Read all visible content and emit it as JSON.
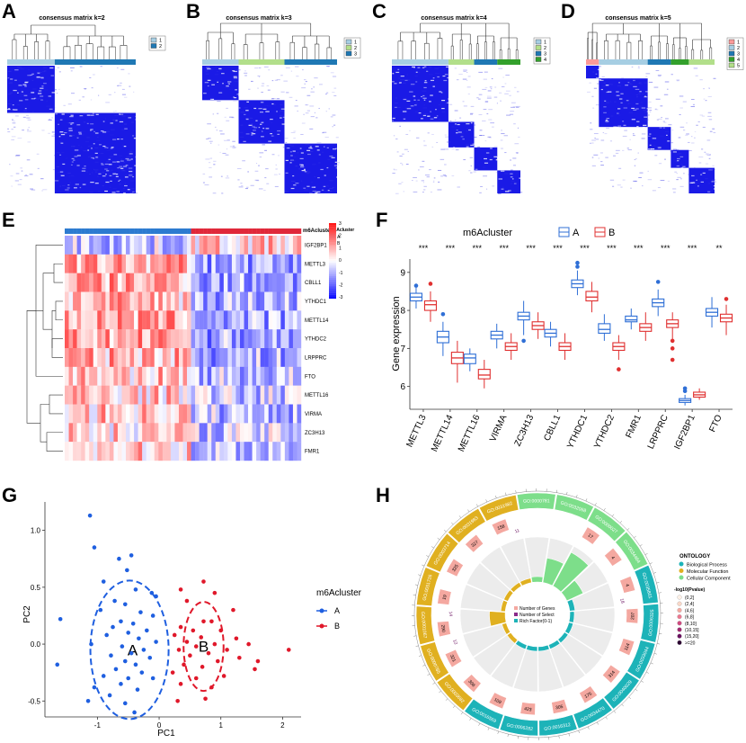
{
  "figure": {
    "panel_labels": [
      "A",
      "B",
      "C",
      "D",
      "E",
      "F",
      "G",
      "H"
    ]
  },
  "chart_data": [
    {
      "panel": "A",
      "type": "heatmap",
      "title": "consensus matrix k=2",
      "k": 2,
      "legend": [
        "1",
        "2"
      ],
      "cluster_colors": [
        "#a6cee3",
        "#1f78b4"
      ],
      "cluster_proportions": [
        0.37,
        0.63
      ]
    },
    {
      "panel": "B",
      "type": "heatmap",
      "title": "consensus matrix k=3",
      "k": 3,
      "legend": [
        "1",
        "2",
        "3"
      ],
      "cluster_colors": [
        "#a6cee3",
        "#b2df8a",
        "#1f78b4"
      ],
      "cluster_proportions": [
        0.27,
        0.34,
        0.39
      ]
    },
    {
      "panel": "C",
      "type": "heatmap",
      "title": "consensus matrix k=4",
      "k": 4,
      "legend": [
        "1",
        "2",
        "3",
        "4"
      ],
      "cluster_colors": [
        "#a6cee3",
        "#b2df8a",
        "#1f78b4",
        "#33a02c"
      ],
      "cluster_proportions": [
        0.44,
        0.2,
        0.18,
        0.18
      ]
    },
    {
      "panel": "D",
      "type": "heatmap",
      "title": "consensus matrix k=5",
      "k": 5,
      "legend": [
        "1",
        "2",
        "3",
        "4",
        "5"
      ],
      "cluster_colors": [
        "#fb9a99",
        "#a6cee3",
        "#1f78b4",
        "#33a02c",
        "#b2df8a"
      ],
      "cluster_proportions": [
        0.1,
        0.38,
        0.18,
        0.14,
        0.2
      ]
    },
    {
      "panel": "E",
      "type": "heatmap",
      "annotation_title": "m6Acluster",
      "annotation_legend": [
        "A",
        "B"
      ],
      "annotation_colors": [
        "#2c7bd0",
        "#e0283a"
      ],
      "genes": [
        "IGF2BP1",
        "METTL3",
        "CBLL1",
        "YTHDC1",
        "METTL14",
        "YTHDC2",
        "LRPPRC",
        "FTO",
        "METTL16",
        "VIRMA",
        "ZC3H13",
        "FMR1"
      ],
      "scale": [
        3,
        2,
        1,
        0,
        -1,
        -2,
        -3
      ],
      "fraction_cluster_A": 0.53
    },
    {
      "panel": "F",
      "type": "box",
      "legend_title": "m6Acluster",
      "groups": [
        "A",
        "B"
      ],
      "colors": {
        "A": "#2f6fd6",
        "B": "#e03030"
      },
      "ylabel": "Gene expression",
      "ylim": [
        5.4,
        9.35
      ],
      "yticks": [
        6,
        7,
        8,
        9
      ],
      "categories": [
        "METTL3",
        "METTL14",
        "METTL16",
        "VIRMA",
        "ZC3H13",
        "CBLL1",
        "YTHDC1",
        "YTHDC2",
        "FMR1",
        "LRPPRC",
        "IGF2BP1",
        "FTO"
      ],
      "significance": [
        "***",
        "***",
        "***",
        "***",
        "***",
        "***",
        "***",
        "***",
        "***",
        "***",
        "***",
        "**"
      ],
      "series": [
        {
          "name": "A",
          "boxes": [
            [
              8.05,
              8.25,
              8.35,
              8.45,
              8.6
            ],
            [
              6.8,
              7.15,
              7.3,
              7.45,
              7.7
            ],
            [
              6.4,
              6.6,
              6.75,
              6.85,
              7.0
            ],
            [
              7.0,
              7.25,
              7.35,
              7.45,
              7.65
            ],
            [
              7.35,
              7.75,
              7.85,
              7.95,
              8.25
            ],
            [
              7.05,
              7.3,
              7.4,
              7.5,
              7.7
            ],
            [
              8.4,
              8.6,
              8.7,
              8.8,
              9.05
            ],
            [
              7.2,
              7.4,
              7.5,
              7.65,
              7.9
            ],
            [
              7.5,
              7.7,
              7.75,
              7.85,
              8.05
            ],
            [
              7.85,
              8.1,
              8.2,
              8.3,
              8.55
            ],
            [
              5.5,
              5.58,
              5.63,
              5.68,
              5.78
            ],
            [
              7.55,
              7.85,
              7.95,
              8.05,
              8.35
            ]
          ]
        },
        {
          "name": "B",
          "boxes": [
            [
              7.7,
              8.0,
              8.15,
              8.25,
              8.5
            ],
            [
              6.1,
              6.6,
              6.75,
              6.9,
              7.2
            ],
            [
              5.95,
              6.2,
              6.3,
              6.45,
              6.7
            ],
            [
              6.7,
              6.95,
              7.05,
              7.15,
              7.4
            ],
            [
              7.25,
              7.5,
              7.6,
              7.7,
              7.95
            ],
            [
              6.7,
              6.95,
              7.05,
              7.15,
              7.4
            ],
            [
              7.95,
              8.25,
              8.35,
              8.5,
              8.75
            ],
            [
              6.7,
              6.95,
              7.05,
              7.15,
              7.35
            ],
            [
              7.2,
              7.45,
              7.55,
              7.65,
              7.95
            ],
            [
              7.2,
              7.55,
              7.65,
              7.75,
              7.95
            ],
            [
              5.65,
              5.72,
              5.78,
              5.85,
              5.95
            ],
            [
              7.35,
              7.7,
              7.8,
              7.9,
              8.15
            ]
          ]
        }
      ],
      "outliers": [
        {
          "cat": 0,
          "g": "A",
          "v": 8.65
        },
        {
          "cat": 0,
          "g": "B",
          "v": 8.7
        },
        {
          "cat": 1,
          "g": "A",
          "v": 7.9
        },
        {
          "cat": 4,
          "g": "A",
          "v": 7.2
        },
        {
          "cat": 6,
          "g": "A",
          "v": 9.25
        },
        {
          "cat": 6,
          "g": "A",
          "v": 9.15
        },
        {
          "cat": 7,
          "g": "B",
          "v": 6.45
        },
        {
          "cat": 9,
          "g": "A",
          "v": 8.75
        },
        {
          "cat": 9,
          "g": "B",
          "v": 7.2
        },
        {
          "cat": 9,
          "g": "B",
          "v": 7.0
        },
        {
          "cat": 9,
          "g": "B",
          "v": 6.7
        },
        {
          "cat": 10,
          "g": "A",
          "v": 5.95
        },
        {
          "cat": 10,
          "g": "A",
          "v": 5.88
        },
        {
          "cat": 11,
          "g": "B",
          "v": 8.3
        }
      ]
    },
    {
      "panel": "G",
      "type": "scatter",
      "xlabel": "PC1",
      "ylabel": "PC2",
      "xlim": [
        -1.85,
        2.3
      ],
      "ylim": [
        -0.64,
        1.25
      ],
      "xticks": [
        -1,
        0,
        1,
        2
      ],
      "yticks": [
        -0.5,
        0.0,
        0.5,
        1.0
      ],
      "legend_title": "m6Acluster",
      "cluster_labels": [
        "A",
        "B"
      ],
      "colors": {
        "A": "#1f5fe0",
        "B": "#e0182a"
      },
      "ellipses": [
        {
          "name": "A",
          "center": [
            -0.48,
            -0.05
          ],
          "rx": 0.88,
          "ry": 0.42
        },
        {
          "name": "B",
          "center": [
            0.72,
            -0.02
          ],
          "rx": 0.45,
          "ry": 0.27
        }
      ],
      "series": [
        {
          "name": "A",
          "points": [
            [
              -1.12,
              1.13
            ],
            [
              -1.05,
              0.85
            ],
            [
              -0.45,
              0.78
            ],
            [
              -0.65,
              0.75
            ],
            [
              -0.52,
              0.65
            ],
            [
              -0.9,
              0.55
            ],
            [
              -0.38,
              0.48
            ],
            [
              -0.12,
              0.45
            ],
            [
              -0.05,
              0.42
            ],
            [
              -0.72,
              0.38
            ],
            [
              -0.55,
              0.35
            ],
            [
              -0.95,
              0.3
            ],
            [
              -0.3,
              0.28
            ],
            [
              -0.1,
              0.25
            ],
            [
              -1.6,
              0.22
            ],
            [
              -0.62,
              0.2
            ],
            [
              -0.42,
              0.18
            ],
            [
              -0.75,
              0.15
            ],
            [
              -0.2,
              0.12
            ],
            [
              -0.5,
              0.1
            ],
            [
              -0.85,
              0.08
            ],
            [
              -0.33,
              0.05
            ],
            [
              -0.05,
              0.02
            ],
            [
              -1.1,
              0.0
            ],
            [
              -0.6,
              -0.02
            ],
            [
              -0.25,
              -0.05
            ],
            [
              -0.45,
              -0.08
            ],
            [
              -0.78,
              -0.1
            ],
            [
              -0.15,
              -0.12
            ],
            [
              -0.55,
              -0.15
            ],
            [
              -0.38,
              -0.18
            ],
            [
              -1.65,
              -0.18
            ],
            [
              -0.7,
              -0.22
            ],
            [
              -0.28,
              -0.25
            ],
            [
              -0.9,
              -0.28
            ],
            [
              -0.5,
              -0.3
            ],
            [
              -0.1,
              -0.3
            ],
            [
              -0.62,
              -0.35
            ],
            [
              -1.05,
              -0.38
            ],
            [
              -0.35,
              -0.4
            ],
            [
              -0.8,
              -0.45
            ],
            [
              -0.55,
              -0.52
            ],
            [
              -0.4,
              -0.6
            ],
            [
              -1.15,
              -0.5
            ]
          ]
        },
        {
          "name": "B",
          "points": [
            [
              0.72,
              0.2
            ],
            [
              0.85,
              0.2
            ],
            [
              0.35,
              0.15
            ],
            [
              0.55,
              0.12
            ],
            [
              1.0,
              0.12
            ],
            [
              0.25,
              0.08
            ],
            [
              0.68,
              0.06
            ],
            [
              1.25,
              0.05
            ],
            [
              0.45,
              0.02
            ],
            [
              0.9,
              0.0
            ],
            [
              1.45,
              0.0
            ],
            [
              0.6,
              -0.02
            ],
            [
              0.32,
              -0.05
            ],
            [
              1.1,
              -0.05
            ],
            [
              0.8,
              -0.08
            ],
            [
              0.5,
              -0.1
            ],
            [
              1.3,
              -0.12
            ],
            [
              0.95,
              -0.15
            ],
            [
              0.4,
              -0.18
            ],
            [
              0.7,
              -0.2
            ],
            [
              1.55,
              -0.22
            ],
            [
              0.22,
              -0.25
            ],
            [
              1.05,
              -0.28
            ],
            [
              0.6,
              -0.3
            ],
            [
              0.35,
              -0.35
            ],
            [
              0.85,
              -0.38
            ],
            [
              0.3,
              -0.5
            ],
            [
              0.75,
              -0.48
            ],
            [
              1.6,
              -0.15
            ],
            [
              2.1,
              -0.05
            ],
            [
              0.45,
              0.38
            ],
            [
              0.9,
              0.45
            ],
            [
              1.2,
              0.3
            ],
            [
              0.35,
              0.48
            ],
            [
              0.72,
              0.55
            ]
          ]
        }
      ]
    },
    {
      "panel": "H",
      "type": "circos",
      "legend_title": "ONTOLOGY",
      "ontology": [
        {
          "label": "Biological Process",
          "color": "#1db3b8"
        },
        {
          "label": "Molecular Function",
          "color": "#e0b020"
        },
        {
          "label": "Cellular Component",
          "color": "#7dde8a"
        }
      ],
      "pvalue_title": "-log10(Pvalue)",
      "pvalue_bins": [
        {
          "label": "(0,2]",
          "color": "#fdf0e6"
        },
        {
          "label": "(2,4]",
          "color": "#f9d8c8"
        },
        {
          "label": "(4,6]",
          "color": "#f4a8a0"
        },
        {
          "label": "(6,8]",
          "color": "#ec7890"
        },
        {
          "label": "(8,10]",
          "color": "#d04a80"
        },
        {
          "label": "(10,15]",
          "color": "#a02870"
        },
        {
          "label": "(15,20]",
          "color": "#6a1060"
        },
        {
          "label": ">=20",
          "color": "#2a0030"
        }
      ],
      "inner_legend": [
        "Number of Genes",
        "Number of Select",
        "Rich Factor(0-1)"
      ],
      "inner_legend_colors": [
        "#f4a8a0",
        "#8a2a8a",
        "#1db3b8"
      ],
      "terms": [
        {
          "id": "GO:0000781",
          "cat": "Cellular Component",
          "genes": "",
          "select": "",
          "rich": 0.12
        },
        {
          "id": "GO:0032068",
          "cat": "Cellular Component",
          "genes": "",
          "select": "",
          "rich": 0.55
        },
        {
          "id": "GO:0000027",
          "cat": "Cellular Component",
          "genes": "17",
          "select": "",
          "rich": 0.85
        },
        {
          "id": "GO:0034464",
          "cat": "Cellular Component",
          "genes": "4",
          "select": "",
          "rich": 0.4
        },
        {
          "id": "GO:0035861",
          "cat": "Biological Process",
          "genes": "4",
          "select": "18",
          "rich": 0.12
        },
        {
          "id": "GO:0006325",
          "cat": "Biological Process",
          "genes": "207",
          "select": "",
          "rich": 0.1
        },
        {
          "id": "GO:0033044",
          "cat": "Biological Process",
          "genes": "114",
          "select": "",
          "rich": 0.1
        },
        {
          "id": "GO:0040029",
          "cat": "Biological Process",
          "genes": "314",
          "select": "",
          "rich": 0.1
        },
        {
          "id": "GO:0034470",
          "cat": "Biological Process",
          "genes": "175",
          "select": "",
          "rich": 0.1
        },
        {
          "id": "GO:0016312",
          "cat": "Biological Process",
          "genes": "305",
          "select": "",
          "rich": 0.1
        },
        {
          "id": "GO:0006282",
          "cat": "Biological Process",
          "genes": "423",
          "select": "",
          "rich": 0.1
        },
        {
          "id": "GO:0016569",
          "cat": "Biological Process",
          "genes": "109",
          "select": "",
          "rich": 0.1
        },
        {
          "id": "GO:0003682",
          "cat": "Molecular Function",
          "genes": "306",
          "select": "",
          "rich": 0.1
        },
        {
          "id": "GO:0000785",
          "cat": "Molecular Function",
          "genes": "321",
          "select": "12",
          "rich": 0.1
        },
        {
          "id": "GO:0001067",
          "cat": "Molecular Function",
          "genes": "290",
          "select": "14",
          "rich": 0.35
        },
        {
          "id": "GO:0051726",
          "cat": "Molecular Function",
          "genes": "19",
          "select": "",
          "rich": 0.1
        },
        {
          "id": "GO:0003714",
          "cat": "Molecular Function",
          "genes": "325",
          "select": "",
          "rich": 0.1
        },
        {
          "id": "GO:0031983",
          "cat": "Molecular Function",
          "genes": "327",
          "select": "",
          "rich": 0.1
        },
        {
          "id": "GO:0031982",
          "cat": "Molecular Function",
          "genes": "158",
          "select": "11",
          "rich": 0.1
        }
      ]
    }
  ]
}
